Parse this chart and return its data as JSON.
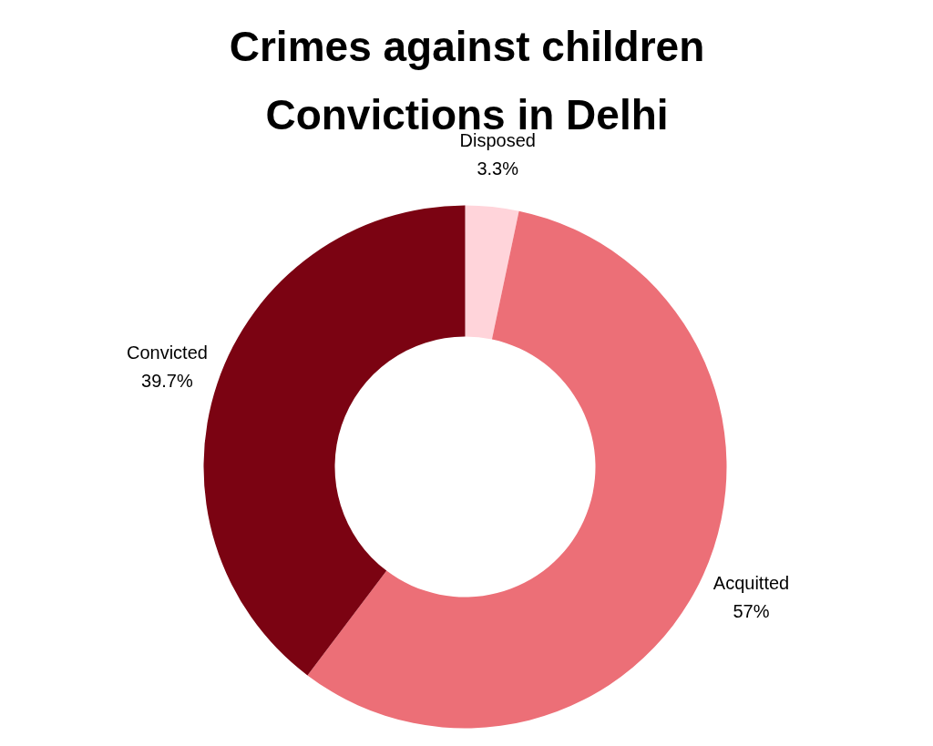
{
  "chart_data": {
    "type": "donut",
    "title": "Crimes against children",
    "subtitle": "Convictions in Delhi",
    "categories": [
      "Disposed",
      "Acquitted",
      "Convicted"
    ],
    "values": [
      3.3,
      57,
      39.7
    ],
    "colors": [
      "#ffd4da",
      "#ec6f77",
      "#7b0312"
    ],
    "value_labels": [
      "3.3%",
      "57%",
      "39.7%"
    ]
  }
}
